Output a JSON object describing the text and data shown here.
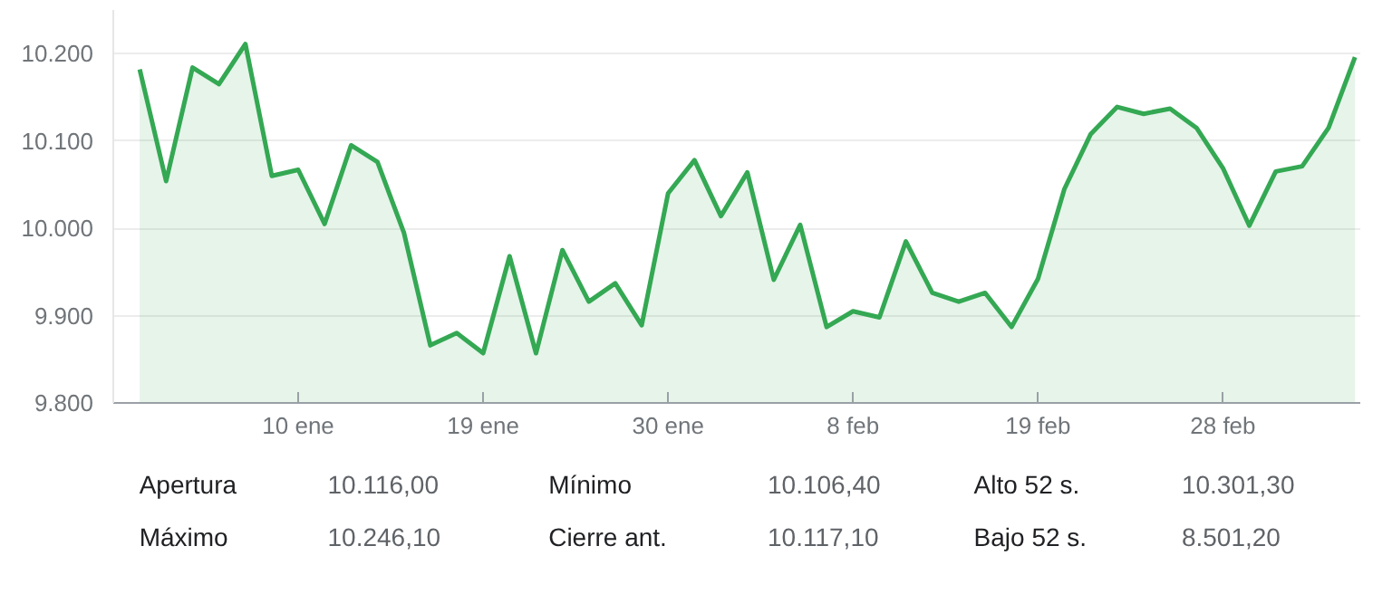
{
  "chart_data": {
    "type": "area",
    "categories": [
      null,
      null,
      null,
      null,
      null,
      null,
      "10 ene",
      null,
      null,
      null,
      null,
      null,
      null,
      "19 ene",
      null,
      null,
      null,
      null,
      null,
      null,
      "30 ene",
      null,
      null,
      null,
      null,
      null,
      null,
      "8 feb",
      null,
      null,
      null,
      null,
      null,
      null,
      "19 feb",
      null,
      null,
      null,
      null,
      null,
      null,
      "28 feb",
      null,
      null,
      null,
      null,
      null
    ],
    "series": [
      {
        "color": "#34a853",
        "values": [
          10182,
          10054,
          10184,
          10165,
          10211,
          10060,
          10067,
          10005,
          10095,
          10076,
          9995,
          9866,
          9880,
          9857,
          9968,
          9857,
          9975,
          9916,
          9937,
          9889,
          10040,
          10078,
          10014,
          10064,
          9941,
          10004,
          9887,
          9905,
          9898,
          9985,
          9926,
          9916,
          9926,
          9887,
          9942,
          10045,
          10108,
          10139,
          10131,
          10137,
          10115,
          10069,
          10003,
          10065,
          10071,
          10115,
          10196
        ]
      }
    ],
    "ylim": [
      9800,
      10250
    ],
    "yticks": [
      {
        "value": 9800,
        "label": "9.800"
      },
      {
        "value": 9900,
        "label": "9.900"
      },
      {
        "value": 10000,
        "label": "10.000"
      },
      {
        "value": 10100,
        "label": "10.100"
      },
      {
        "value": 10200,
        "label": "10.200"
      }
    ],
    "grid": "y",
    "annotations": [
      "Apertura",
      "10.116,00",
      "Mínimo",
      "10.106,40",
      "Alto 52 s.",
      "10.301,30",
      "Máximo",
      "10.246,10",
      "Cierre ant.",
      "10.117,10",
      "Bajo 52 s.",
      "8.501,20"
    ]
  }
}
